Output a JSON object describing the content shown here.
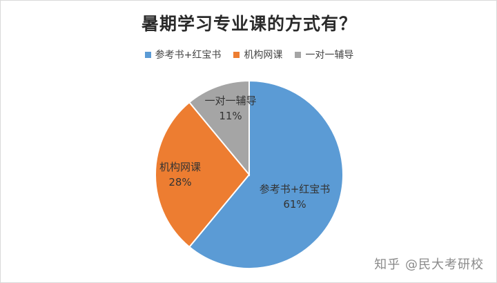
{
  "chart_data": {
    "type": "pie",
    "title": "暑期学习专业课的方式有？",
    "legend_position": "top",
    "categories": [
      "参考书+红宝书",
      "机构网课",
      "一对一辅导"
    ],
    "values": [
      61,
      28,
      11
    ],
    "labels": [
      "61%",
      "28%",
      "11%"
    ],
    "colors": [
      "#5b9bd5",
      "#ed7d31",
      "#a5a5a5"
    ]
  },
  "watermark": "知乎 @民大考研校"
}
